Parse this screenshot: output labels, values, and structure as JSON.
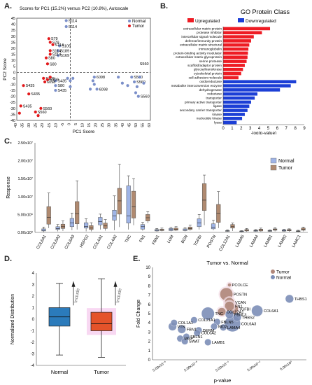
{
  "figure": {
    "panel_labels": [
      "A.",
      "B.",
      "C.",
      "D.",
      "E."
    ]
  },
  "colors": {
    "normal": "#7b8fc9",
    "tumor": "#e31a1c",
    "upregulated": "#ee1c24",
    "downregulated": "#1c3fd6",
    "box_normal": "#9fb4e6",
    "box_tumor": "#b08a70",
    "bubble_normal": "#7d8fb8",
    "bubble_tumor": "#b0877a"
  },
  "chart_data": [
    {
      "id": "A",
      "type": "scatter",
      "title": "Scores for PC1 (15.2%) versus PC2 (10.8%), Autoscale",
      "xlabel": "PC1 Score",
      "ylabel": "PC2 Score",
      "xlim": [
        -40,
        60
      ],
      "ylim": [
        -40,
        45
      ],
      "xticks": [
        -40,
        -35,
        -30,
        -25,
        -20,
        -15,
        -10,
        -5,
        0,
        5,
        10,
        15,
        20,
        25,
        30,
        35,
        40,
        45,
        50,
        55,
        60
      ],
      "yticks": [
        45,
        40,
        35,
        30,
        25,
        20,
        15,
        10,
        5,
        0,
        -5,
        -10,
        -15,
        -20,
        -25,
        -30,
        -35,
        -40
      ],
      "legend": [
        "Normal",
        "Tumor"
      ],
      "series": [
        {
          "name": "Normal",
          "points": [
            [
              -3,
              43,
              "S114"
            ],
            [
              -3,
              38,
              "S114"
            ],
            [
              -8,
              22,
              "S109"
            ],
            [
              -9,
              18,
              "S189"
            ],
            [
              -9,
              14,
              "S169"
            ],
            [
              -11,
              -7,
              "S435"
            ],
            [
              -11,
              -11,
              "S80"
            ],
            [
              -11,
              -15,
              "S435"
            ],
            [
              -2,
              -5,
              ""
            ],
            [
              0,
              -7,
              ""
            ],
            [
              2,
              -5,
              ""
            ],
            [
              0,
              -12,
              ""
            ],
            [
              18,
              -4,
              "6098"
            ],
            [
              17,
              -7,
              ""
            ],
            [
              18,
              -10,
              ""
            ],
            [
              15,
              -14,
              ""
            ],
            [
              20,
              -14,
              "6098"
            ],
            [
              36,
              -4,
              ""
            ],
            [
              39,
              -9,
              ""
            ],
            [
              43,
              -11,
              ""
            ],
            [
              46,
              -4,
              "S560"
            ],
            [
              48,
              -8,
              "S560"
            ],
            [
              51,
              -20,
              "S560"
            ],
            [
              49,
              -17,
              ""
            ],
            [
              50,
              -12,
              ""
            ],
            [
              52,
              -4,
              ""
            ],
            [
              55,
              -9,
              ""
            ]
          ]
        },
        {
          "name": "Tumor",
          "points": [
            [
              -16,
              28,
              "S79"
            ],
            [
              -15,
              25,
              "S79"
            ],
            [
              -13,
              23,
              "S114"
            ],
            [
              -15,
              18,
              "S114"
            ],
            [
              -15,
              15,
              "S114"
            ],
            [
              -18,
              12,
              "S80"
            ],
            [
              -17,
              7,
              "S80"
            ],
            [
              -20,
              -5,
              "S109"
            ],
            [
              -17,
              -6,
              "S109"
            ],
            [
              -19,
              -8,
              "6098"
            ],
            [
              -15,
              -4,
              ""
            ],
            [
              -35,
              -11,
              "S435"
            ],
            [
              -31,
              -18,
              "S435"
            ],
            [
              -37,
              -28,
              "S435"
            ],
            [
              -38,
              -34,
              ""
            ],
            [
              -26,
              -33,
              "S560"
            ],
            [
              -22,
              -30,
              "S560"
            ],
            [
              -24,
              -36,
              ""
            ]
          ]
        }
      ],
      "top_right_label": "S560"
    },
    {
      "id": "B",
      "type": "bar",
      "orientation": "horizontal",
      "title": "GO Protein Class",
      "xlabel": "-log(p-value)",
      "xlim": [
        0,
        9
      ],
      "xticks": [
        0,
        1,
        2,
        3,
        4,
        5,
        6,
        7,
        8,
        9
      ],
      "legend": [
        "Upregulated",
        "Downregulated"
      ],
      "series": [
        {
          "name": "Upregulated",
          "categories": [
            "extracellular matrix protein",
            "protease inhibitor",
            "intercellular signal molecule",
            "defense/immunity protein",
            "extracellular matrix structural",
            "immunoglobulin",
            "protein-binding activity modulator",
            "extracellular matrix glycoprotein",
            "serine protease",
            "scaffold/adaptor protein",
            "glycosyltransferase",
            "cytoskeletal protein",
            "cell adhesion molecule"
          ],
          "values": [
            5.2,
            4.3,
            3.4,
            3.1,
            2.9,
            2.8,
            2.75,
            2.7,
            2.6,
            2.4,
            2.2,
            2.0,
            1.7
          ]
        },
        {
          "name": "Downregulated",
          "categories": [
            "oxidoreductase",
            "metabolite interconversion enzyme",
            "dehydrogenase",
            "reductase",
            "transporter",
            "primary active transporter",
            "ligase",
            "secondary carrier transporter",
            "kinase",
            "nucleotide kinase",
            "lyase"
          ],
          "values": [
            8.1,
            7.5,
            6.3,
            3.8,
            3.5,
            3.1,
            2.9,
            2.7,
            2.4,
            2.1,
            1.5
          ]
        }
      ]
    },
    {
      "id": "C",
      "type": "box",
      "ylabel": "Response",
      "ylim": [
        0,
        25000000
      ],
      "yticks": [
        "0.00x10⁰",
        "5.00x10⁶",
        "1.00x10⁷",
        "1.50x10⁷",
        "2.00x10⁷",
        "2.50x10⁷"
      ],
      "legend": [
        "Normal",
        "Tumor"
      ],
      "categories": [
        "COL6A1",
        "COL6A2",
        "COL6A3",
        "HSPG2",
        "COL4A1",
        "COL4A2",
        "TNC",
        "FN1",
        "FBN1",
        "LUM",
        "BGN",
        "TGFBI",
        "POSTN",
        "COL12A1",
        "LAMA5",
        "LAMA4",
        "LAMB1",
        "LAMB2",
        "LAMC1"
      ],
      "series": [
        {
          "name": "Normal",
          "boxes_millions": [
            [
              0.1,
              0.4,
              0.6,
              1.0,
              1.5
            ],
            [
              0.3,
              0.8,
              1.1,
              1.6,
              2.2
            ],
            [
              0.6,
              1.6,
              2.6,
              3.9,
              5.4
            ],
            [
              0.3,
              1.2,
              1.7,
              2.7,
              3.8
            ],
            [
              0.8,
              2.1,
              3.0,
              4.2,
              5.1
            ],
            [
              0.6,
              3.4,
              4.6,
              6.2,
              10.2
            ],
            [
              0.8,
              2.6,
              4.6,
              13.0,
              15.8
            ],
            [
              0.5,
              0.9,
              1.6,
              2.2,
              2.8
            ],
            [
              0.2,
              0.4,
              0.6,
              0.8,
              1.1
            ],
            [
              0.3,
              0.5,
              0.8,
              1.1,
              1.4
            ],
            [
              0.3,
              0.5,
              0.7,
              1.0,
              1.3
            ],
            [
              0.8,
              1.6,
              2.6,
              3.8,
              5.0
            ],
            [
              0.6,
              1.0,
              1.5,
              2.4,
              3.4
            ],
            [
              0.2,
              0.3,
              0.4,
              0.5,
              0.7
            ],
            [
              0.1,
              0.2,
              0.3,
              0.4,
              0.5
            ],
            [
              0.2,
              0.3,
              0.45,
              0.6,
              0.8
            ],
            [
              0.2,
              0.3,
              0.4,
              0.55,
              0.7
            ],
            [
              0.2,
              0.35,
              0.5,
              0.7,
              0.9
            ],
            [
              0.15,
              0.25,
              0.35,
              0.45,
              0.6
            ]
          ]
        },
        {
          "name": "Tumor",
          "boxes_millions": [
            [
              1.2,
              2.3,
              4.2,
              7.2,
              11.0
            ],
            [
              0.4,
              1.1,
              1.6,
              2.3,
              3.2
            ],
            [
              0.8,
              2.4,
              5.2,
              8.6,
              14.4
            ],
            [
              0.3,
              0.8,
              1.2,
              1.9,
              2.7
            ],
            [
              0.5,
              1.1,
              1.8,
              2.6,
              3.6
            ],
            [
              1.5,
              5.1,
              8.8,
              12.3,
              19.0
            ],
            [
              2.0,
              4.0,
              7.1,
              11.5,
              15.0
            ],
            [
              2.6,
              3.2,
              4.1,
              5.0,
              5.8
            ],
            [
              0.3,
              0.5,
              0.7,
              0.9,
              1.2
            ],
            [
              0.4,
              0.6,
              0.9,
              1.2,
              1.6
            ],
            [
              0.5,
              0.8,
              1.1,
              1.5,
              2.0
            ],
            [
              2.0,
              6.1,
              9.0,
              13.6,
              16.0
            ],
            [
              1.2,
              2.8,
              5.3,
              7.8,
              11.4
            ],
            [
              0.4,
              1.2,
              1.6,
              2.2,
              2.6
            ],
            [
              0.2,
              0.4,
              0.6,
              0.8,
              1.1
            ],
            [
              0.2,
              0.4,
              0.65,
              0.9,
              1.2
            ],
            [
              0.3,
              0.6,
              0.8,
              1.0,
              1.3
            ],
            [
              0.2,
              0.45,
              0.6,
              0.8,
              1.0
            ],
            [
              0.3,
              0.6,
              0.9,
              1.2,
              1.5
            ]
          ]
        }
      ]
    },
    {
      "id": "D",
      "type": "box",
      "ylabel": "Normalized Distribution",
      "ylim": [
        -4,
        4
      ],
      "yticks": [
        4,
        3,
        2,
        1,
        0,
        -1,
        -2,
        -3,
        -4
      ],
      "categories": [
        "Normal",
        "Tumor"
      ],
      "boxes": [
        [
          -3.1,
          -0.6,
          0.2,
          1.0,
          3.1
        ],
        [
          -3.3,
          -1.0,
          -0.4,
          0.6,
          3.5
        ]
      ],
      "annotation": "Include"
    },
    {
      "id": "E",
      "type": "scatter",
      "title": "Tumor vs. Normal",
      "xlabel": "p-value",
      "ylabel": "Fold Change",
      "ylim": [
        0,
        10
      ],
      "yticks": [
        0,
        1,
        2,
        3,
        4,
        5,
        6,
        7,
        8,
        9,
        10
      ],
      "xtick_labels": [
        "5.00x10⁻⁸",
        "5.00x10⁻⁶",
        "5.00x10⁻⁴",
        "5.00x10⁻²",
        "5.00x10⁰"
      ],
      "legend": [
        "Tumor",
        "Normal"
      ],
      "points": [
        {
          "label": "PCOLCE",
          "x": 0.5,
          "y": 8.1,
          "group": "Tumor",
          "size": 1
        },
        {
          "label": "POSTN",
          "x": 0.48,
          "y": 7.1,
          "group": "Tumor",
          "size": 7
        },
        {
          "label": "THBS1",
          "x": 0.89,
          "y": 6.6,
          "group": "Normal",
          "size": 4
        },
        {
          "label": "VCAN",
          "x": 0.5,
          "y": 6.2,
          "group": "Tumor",
          "size": 5
        },
        {
          "label": "FN1",
          "x": 0.5,
          "y": 5.8,
          "group": "Tumor",
          "size": 5
        },
        {
          "label": "TGFBI",
          "x": 0.52,
          "y": 5.5,
          "group": "Tumor",
          "size": 6
        },
        {
          "label": "COL12A1",
          "x": 0.45,
          "y": 5.2,
          "group": "Tumor",
          "size": 4
        },
        {
          "label": "FBNL3",
          "x": 0.5,
          "y": 4.9,
          "group": "Normal",
          "size": 4
        },
        {
          "label": "THBS2",
          "x": 0.55,
          "y": 4.6,
          "group": "Normal",
          "size": 4
        },
        {
          "label": "COL6A1",
          "x": 0.68,
          "y": 5.3,
          "group": "Normal",
          "size": 6
        },
        {
          "label": "TNC",
          "x": 0.36,
          "y": 5.0,
          "group": "Normal",
          "size": 7
        },
        {
          "label": "FBLN5",
          "x": 0.42,
          "y": 4.1,
          "group": "Normal",
          "size": 3
        },
        {
          "label": "COL6A3",
          "x": 0.52,
          "y": 3.9,
          "group": "Normal",
          "size": 9
        },
        {
          "label": "LAMA4",
          "x": 0.46,
          "y": 3.5,
          "group": "Normal",
          "size": 3
        },
        {
          "label": "NID2",
          "x": 0.4,
          "y": 3.6,
          "group": "Normal",
          "size": 3
        },
        {
          "label": "COL21A1",
          "x": 0.27,
          "y": 4.3,
          "group": "Normal",
          "size": 3
        },
        {
          "label": "COL1A1",
          "x": 0.14,
          "y": 4.0,
          "group": "Normal",
          "size": 3
        },
        {
          "label": "VTN",
          "x": 0.13,
          "y": 3.6,
          "group": "Normal",
          "size": 4
        },
        {
          "label": "FBN1",
          "x": 0.19,
          "y": 3.3,
          "group": "Normal",
          "size": 4
        },
        {
          "label": "DERM",
          "x": 0.3,
          "y": 3.2,
          "group": "Normal",
          "size": 3
        },
        {
          "label": "COL6A2",
          "x": 0.29,
          "y": 2.9,
          "group": "Normal",
          "size": 3
        },
        {
          "label": "FBLN1",
          "x": 0.22,
          "y": 2.5,
          "group": "Normal",
          "size": 3
        },
        {
          "label": "MGP",
          "x": 0.18,
          "y": 2.3,
          "group": "Normal",
          "size": 3
        },
        {
          "label": "SWAT",
          "x": 0.21,
          "y": 2.0,
          "group": "Normal",
          "size": 3
        },
        {
          "label": "LAMB1",
          "x": 0.36,
          "y": 1.9,
          "group": "Normal",
          "size": 3
        }
      ]
    }
  ]
}
